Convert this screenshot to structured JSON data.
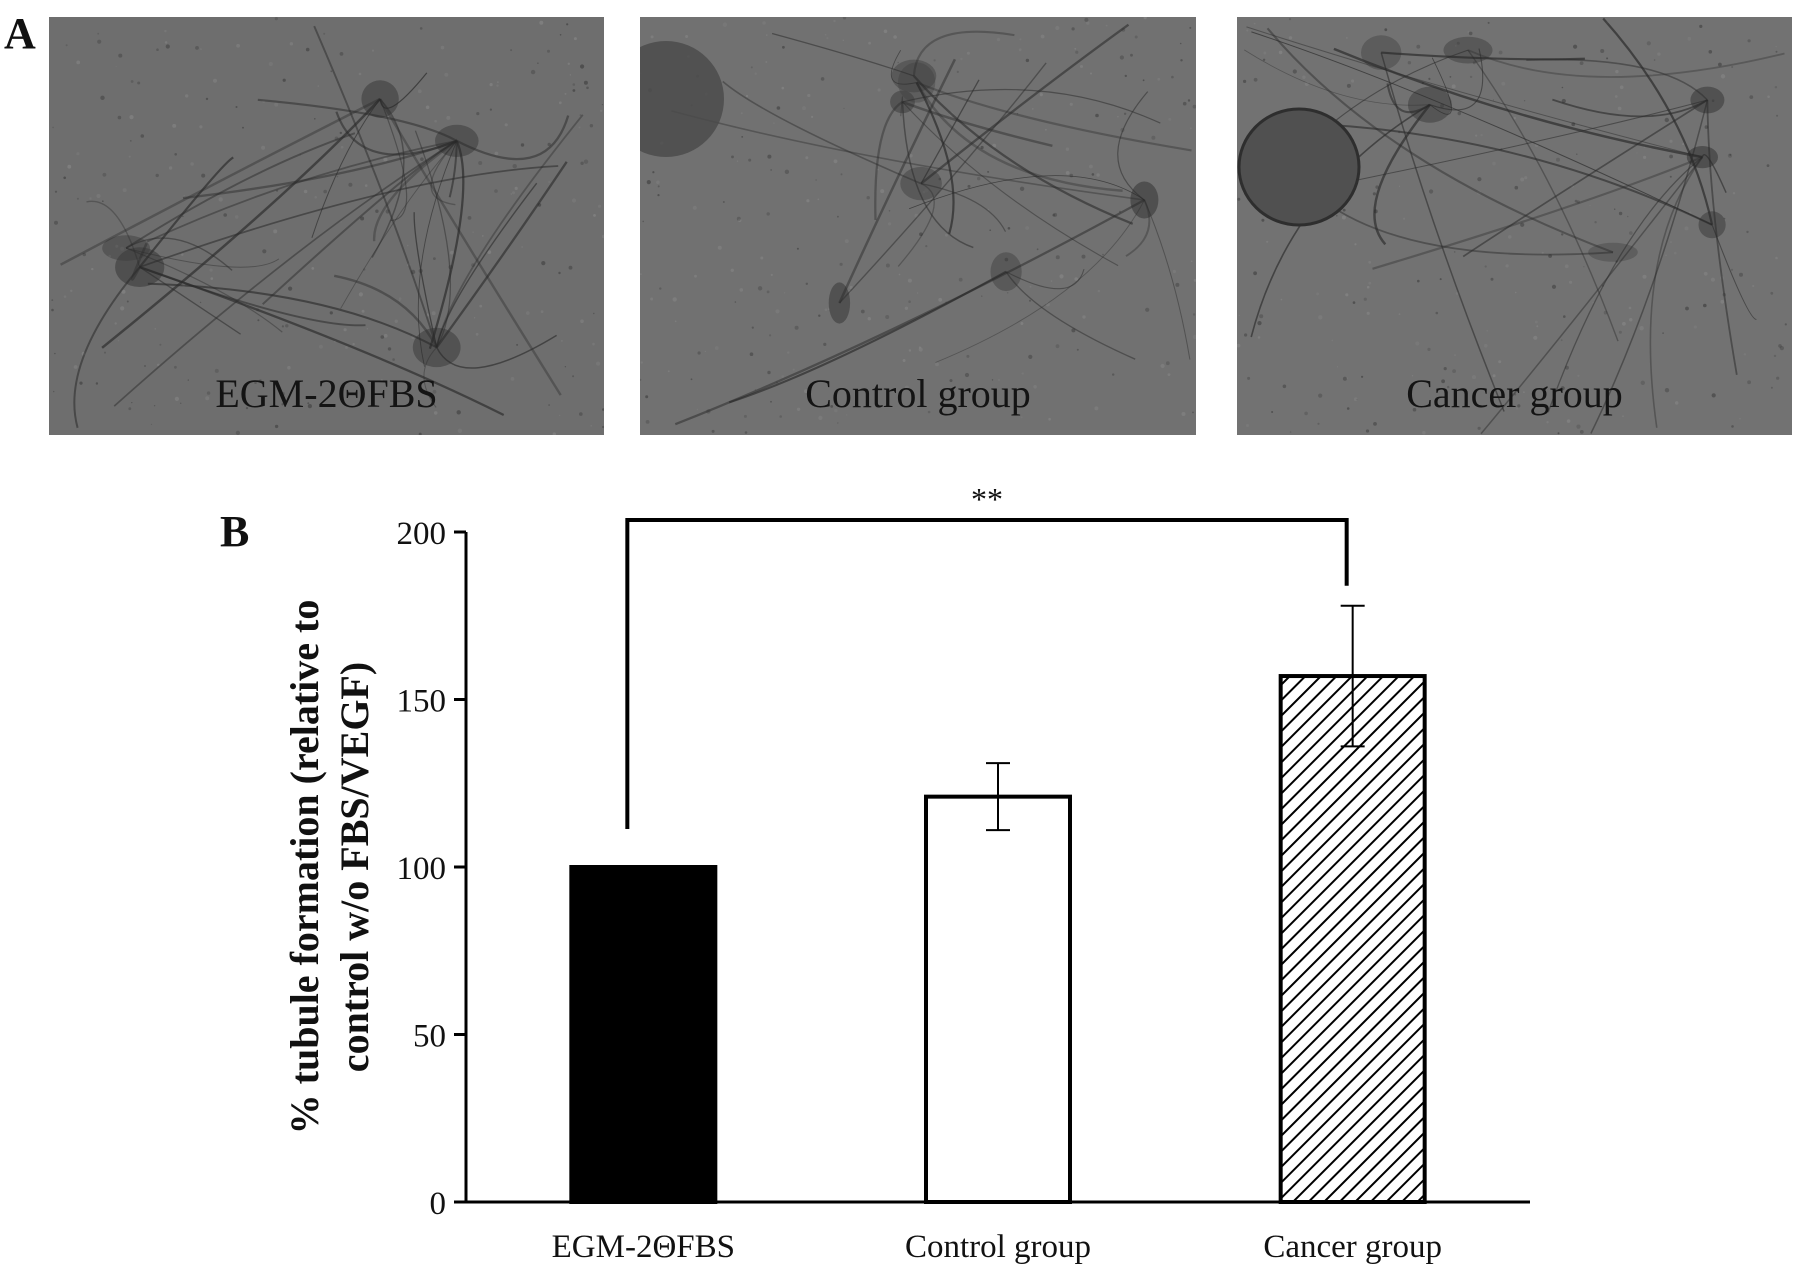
{
  "panel_a": {
    "letter": "A",
    "images": [
      {
        "caption": "EGM-2ΘFBS",
        "background_color": "#6e6e6e"
      },
      {
        "caption": "Control group",
        "background_color": "#717171"
      },
      {
        "caption": "Cancer group",
        "background_color": "#727272"
      }
    ]
  },
  "panel_b": {
    "letter": "B"
  },
  "chart_data": {
    "type": "bar",
    "title": "",
    "xlabel": "",
    "ylabel": "% tubule formation (relative to control w/o FBS/VEGF)",
    "ylabel_lines": [
      "% tubule formation (relative to",
      "control w/o FBS/VEGF)"
    ],
    "categories": [
      "EGM-2ΘFBS",
      "Control group",
      "Cancer group"
    ],
    "values": [
      100,
      121,
      157
    ],
    "errors": [
      0,
      10,
      21
    ],
    "fills": [
      "solid-black",
      "white",
      "diagonal-hatch"
    ],
    "ylim": [
      0,
      200
    ],
    "yticks": [
      0,
      50,
      100,
      150,
      200
    ],
    "grid": false,
    "legend": "none",
    "significance": {
      "label": "**",
      "between": [
        "EGM-2ΘFBS",
        "Cancer group"
      ]
    },
    "colors": {
      "bar_edge": "#000000",
      "solid_fill": "#000000",
      "open_fill": "#ffffff"
    }
  }
}
